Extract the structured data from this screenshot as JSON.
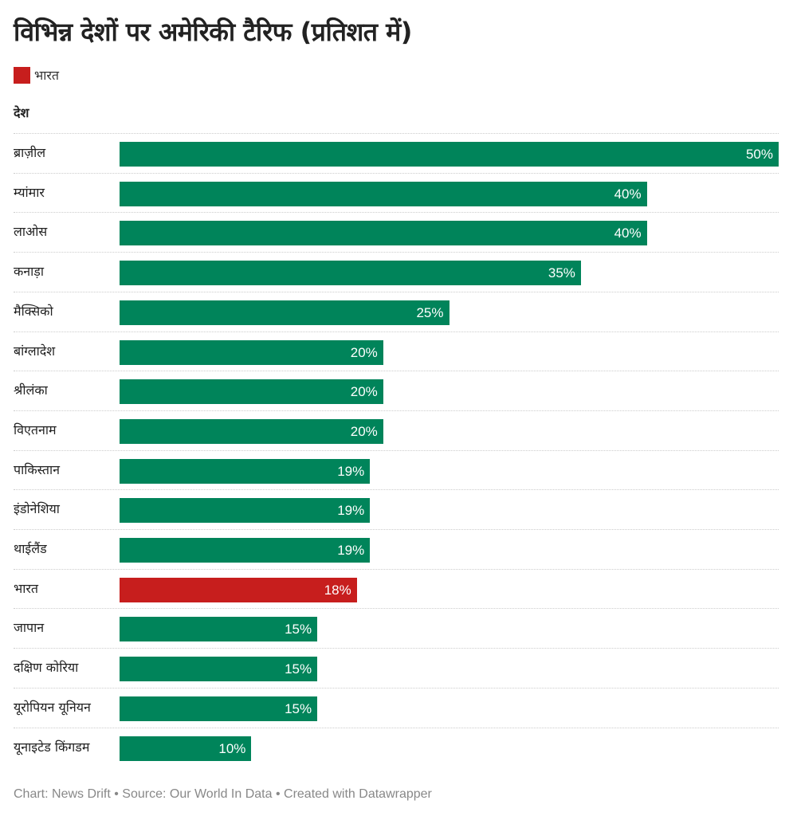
{
  "title": "विभिन्न देशों पर अमेरिकी टैरिफ (प्रतिशत में)",
  "legend": [
    {
      "label": "भारत",
      "color": "#c71e1d"
    }
  ],
  "column_header": "देश",
  "footer": "Chart: News Drift • Source: Our World In Data • Created with Datawrapper",
  "chart_data": {
    "type": "bar",
    "title": "विभिन्न देशों पर अमेरिकी टैरिफ (प्रतिशत में)",
    "orientation": "horizontal",
    "xlim": [
      0,
      50
    ],
    "unit": "%",
    "default_color": "#00845a",
    "highlight_color": "#c71e1d",
    "highlight": "भारत",
    "categories": [
      "ब्राज़ील",
      "म्यांमार",
      "लाओस",
      "कनाड़ा",
      "मैक्सिको",
      "बांग्लादेश",
      "श्रीलंका",
      "विएतनाम",
      "पाकिस्तान",
      "इंडोनेशिया",
      "थाईलैंड",
      "भारत",
      "जापान",
      "दक्षिण कोरिया",
      "यूरोपियन यूनियन",
      "यूनाइटेड किंगडम"
    ],
    "values": [
      50,
      40,
      40,
      35,
      25,
      20,
      20,
      20,
      19,
      19,
      19,
      18,
      15,
      15,
      15,
      10
    ],
    "labels": [
      "50%",
      "40%",
      "40%",
      "35%",
      "25%",
      "20%",
      "20%",
      "20%",
      "19%",
      "19%",
      "19%",
      "18%",
      "15%",
      "15%",
      "15%",
      "10%"
    ]
  }
}
